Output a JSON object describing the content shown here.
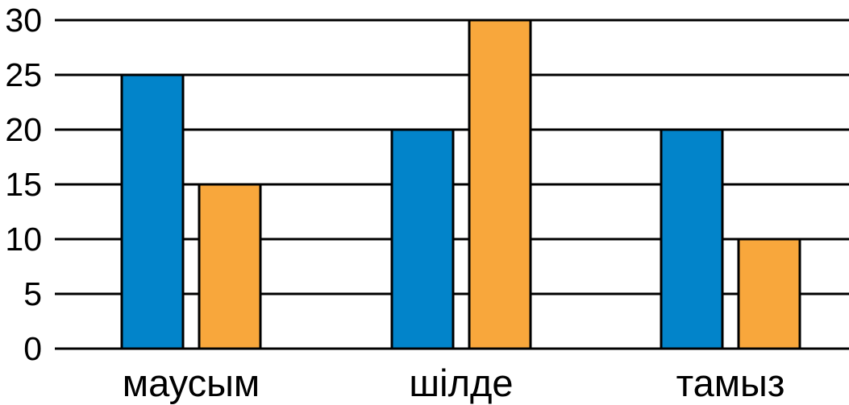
{
  "chart_data": {
    "type": "bar",
    "categories": [
      "маусым",
      "шілде",
      "тамыз"
    ],
    "series": [
      {
        "values": [
          25,
          20,
          20
        ],
        "color": "#0284CA"
      },
      {
        "values": [
          15,
          30,
          10
        ],
        "color": "#F8A73C"
      }
    ],
    "yticks": [
      "0",
      "5",
      "10",
      "15",
      "20",
      "25",
      "30"
    ],
    "ylim": [
      0,
      30
    ],
    "grid": true,
    "gridline_color": "#000000",
    "bar_outline_color": "#000000"
  }
}
